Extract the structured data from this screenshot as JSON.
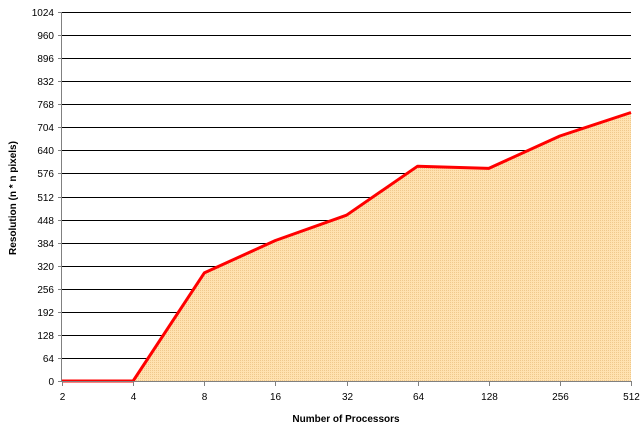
{
  "chart_data": {
    "type": "area",
    "title": "",
    "xlabel": "Number of Processors",
    "ylabel": "Resolution (n * n pixels)",
    "x_scale": "log2",
    "x": [
      2,
      3,
      4,
      8,
      16,
      32,
      64,
      128,
      256,
      512
    ],
    "x_ticks": [
      2,
      4,
      8,
      16,
      32,
      64,
      128,
      256,
      512
    ],
    "ylim": [
      0,
      1024
    ],
    "y_ticks": [
      0,
      64,
      128,
      192,
      256,
      320,
      384,
      448,
      512,
      576,
      640,
      704,
      768,
      832,
      896,
      960,
      1024
    ],
    "grid": "horizontal",
    "series": [
      {
        "values": [
          0,
          0,
          0,
          300,
          390,
          460,
          596,
          590,
          680,
          745
        ]
      }
    ],
    "colors": {
      "line": "#ff0000",
      "fill": "#ffe0a8",
      "fill_pattern": "#e9bf80",
      "grid": "#000000",
      "axis": "#808080"
    }
  }
}
